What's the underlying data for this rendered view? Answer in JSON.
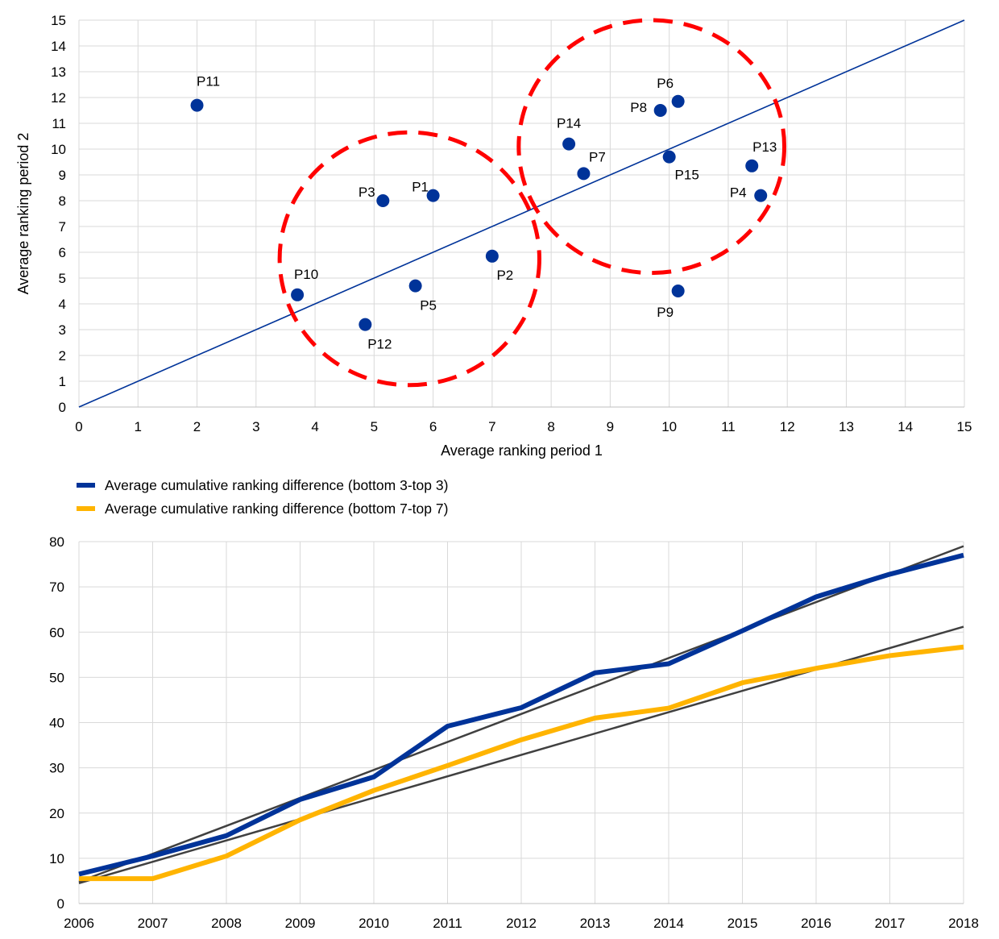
{
  "chart_data": [
    {
      "type": "scatter",
      "xlabel": "Average ranking period 1",
      "ylabel": "Average  ranking period 2",
      "xlim": [
        0,
        15
      ],
      "ylim": [
        0,
        15
      ],
      "xticks": [
        "0",
        "1",
        "2",
        "3",
        "4",
        "5",
        "6",
        "7",
        "8",
        "9",
        "10",
        "11",
        "12",
        "13",
        "14",
        "15"
      ],
      "yticks": [
        "0",
        "1",
        "2",
        "3",
        "4",
        "5",
        "6",
        "7",
        "8",
        "9",
        "10",
        "11",
        "12",
        "13",
        "14",
        "15"
      ],
      "grid": true,
      "points": [
        {
          "label": "P1",
          "x": 6.0,
          "y": 8.2
        },
        {
          "label": "P2",
          "x": 7.0,
          "y": 5.85
        },
        {
          "label": "P3",
          "x": 5.15,
          "y": 8.0
        },
        {
          "label": "P4",
          "x": 11.55,
          "y": 8.2
        },
        {
          "label": "P5",
          "x": 5.7,
          "y": 4.7
        },
        {
          "label": "P6",
          "x": 10.15,
          "y": 11.85
        },
        {
          "label": "P7",
          "x": 8.55,
          "y": 9.05
        },
        {
          "label": "P8",
          "x": 9.85,
          "y": 11.5
        },
        {
          "label": "P9",
          "x": 10.15,
          "y": 4.5
        },
        {
          "label": "P10",
          "x": 3.7,
          "y": 4.35
        },
        {
          "label": "P11",
          "x": 2.0,
          "y": 11.7
        },
        {
          "label": "P12",
          "x": 4.85,
          "y": 3.2
        },
        {
          "label": "P13",
          "x": 11.4,
          "y": 9.35
        },
        {
          "label": "P14",
          "x": 8.3,
          "y": 10.2
        },
        {
          "label": "P15",
          "x": 10.0,
          "y": 9.7
        }
      ],
      "reference_line": {
        "from": [
          0,
          0
        ],
        "to": [
          15,
          15
        ]
      },
      "highlight_circles": [
        {
          "cx": 5.6,
          "cy": 5.75,
          "rx": 2.2,
          "ry": 4.9
        },
        {
          "cx": 9.7,
          "cy": 10.1,
          "rx": 2.25,
          "ry": 4.9
        }
      ],
      "colors": {
        "points": "#003399",
        "reference_line": "#003399",
        "circles": "#ff0000",
        "grid": "#d9d9d9"
      }
    },
    {
      "type": "line",
      "x": [
        "2006",
        "2007",
        "2008",
        "2009",
        "2010",
        "2011",
        "2012",
        "2013",
        "2014",
        "2015",
        "2016",
        "2017",
        "2018"
      ],
      "ylim": [
        0,
        80
      ],
      "yticks": [
        "0",
        "10",
        "20",
        "30",
        "40",
        "50",
        "60",
        "70",
        "80"
      ],
      "grid": true,
      "legend_position": "top-left",
      "series": [
        {
          "name": "Average cumulative ranking difference (bottom 3-top 3)",
          "color": "#003399",
          "values": [
            6.5,
            10.5,
            15.0,
            23.0,
            28.0,
            39.2,
            43.3,
            51.0,
            53.0,
            60.3,
            67.8,
            72.8,
            77.0
          ]
        },
        {
          "name": "Average cumulative ranking difference (bottom 7-top 7)",
          "color": "#ffb400",
          "values": [
            5.5,
            5.5,
            10.5,
            18.5,
            25.0,
            30.5,
            36.2,
            41.0,
            43.2,
            48.8,
            52.0,
            54.8,
            56.7
          ]
        }
      ],
      "trend_lines": [
        {
          "color": "#404040",
          "from": 4.8,
          "to": 79.0
        },
        {
          "color": "#404040",
          "from": 4.5,
          "to": 61.2
        }
      ]
    }
  ]
}
